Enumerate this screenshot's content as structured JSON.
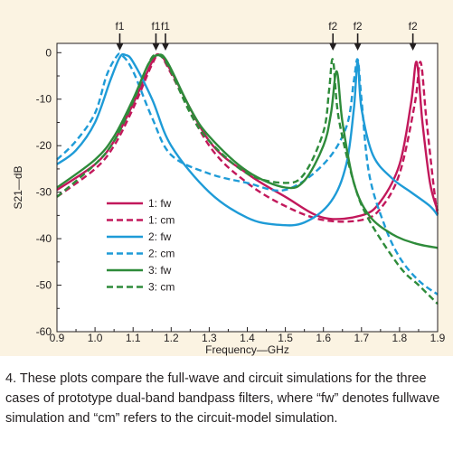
{
  "chart_data": {
    "type": "line",
    "xlabel": "Frequency—GHz",
    "ylabel": "S21—dB",
    "xlim": [
      0.9,
      1.9
    ],
    "ylim": [
      -60,
      2
    ],
    "xticks": [
      "0.9",
      "1.0",
      "1.1",
      "1.2",
      "1.3",
      "1.4",
      "1.5",
      "1.6",
      "1.7",
      "1.8",
      "1.9"
    ],
    "yticks": [
      "0",
      "-10",
      "-20",
      "-30",
      "-40",
      "-50",
      "-60"
    ],
    "grid": false,
    "legend_position": "lower-left",
    "colors": {
      "1": "#c2185b",
      "2": "#1e9bd7",
      "3": "#2e8b3a"
    },
    "series": [
      {
        "name": "1: fw",
        "color": "#c2185b",
        "dash": false,
        "x": [
          0.9,
          1.0,
          1.05,
          1.1,
          1.15,
          1.17,
          1.2,
          1.3,
          1.4,
          1.5,
          1.6,
          1.7,
          1.75,
          1.8,
          1.83,
          1.845,
          1.86,
          1.88,
          1.9
        ],
        "y": [
          -29.5,
          -24,
          -19,
          -11,
          -2,
          -0.5,
          -4,
          -19,
          -26,
          -31,
          -35.5,
          -35,
          -32,
          -24,
          -11,
          -2,
          -15,
          -28,
          -34
        ]
      },
      {
        "name": "1: cm",
        "color": "#c2185b",
        "dash": true,
        "x": [
          0.9,
          1.0,
          1.05,
          1.1,
          1.15,
          1.17,
          1.2,
          1.3,
          1.4,
          1.5,
          1.6,
          1.7,
          1.75,
          1.8,
          1.84,
          1.855,
          1.87,
          1.89,
          1.9
        ],
        "y": [
          -31,
          -25,
          -20,
          -12,
          -2.5,
          -0.5,
          -4.5,
          -20,
          -28,
          -33,
          -36,
          -36,
          -33.5,
          -26,
          -11,
          -2,
          -14,
          -29,
          -35
        ]
      },
      {
        "name": "2: fw",
        "color": "#1e9bd7",
        "dash": false,
        "x": [
          0.9,
          0.95,
          1.0,
          1.04,
          1.065,
          1.08,
          1.1,
          1.15,
          1.2,
          1.3,
          1.4,
          1.48,
          1.55,
          1.62,
          1.66,
          1.68,
          1.69,
          1.7,
          1.73,
          1.78,
          1.83,
          1.88,
          1.9
        ],
        "y": [
          -24,
          -21,
          -15,
          -6,
          -1,
          -0.5,
          -2,
          -10,
          -20,
          -30,
          -35.5,
          -37,
          -36.5,
          -32,
          -24,
          -12,
          -2,
          -12,
          -22,
          -27,
          -30,
          -33,
          -35
        ]
      },
      {
        "name": "2: cm",
        "color": "#1e9bd7",
        "dash": true,
        "x": [
          0.9,
          0.95,
          1.0,
          1.03,
          1.055,
          1.07,
          1.1,
          1.15,
          1.2,
          1.3,
          1.4,
          1.5,
          1.6,
          1.66,
          1.68,
          1.69,
          1.7,
          1.72,
          1.76,
          1.8,
          1.85,
          1.9
        ],
        "y": [
          -23,
          -19,
          -13,
          -5,
          -1,
          -0.5,
          -4,
          -14,
          -22,
          -26,
          -28,
          -29.5,
          -24,
          -16,
          -6,
          -1.5,
          -10,
          -26,
          -37,
          -44,
          -49,
          -52
        ]
      },
      {
        "name": "3: fw",
        "color": "#2e8b3a",
        "dash": false,
        "x": [
          0.9,
          1.0,
          1.05,
          1.1,
          1.14,
          1.165,
          1.19,
          1.25,
          1.3,
          1.4,
          1.5,
          1.55,
          1.6,
          1.62,
          1.635,
          1.65,
          1.68,
          1.72,
          1.78,
          1.84,
          1.9
        ],
        "y": [
          -29,
          -23,
          -18,
          -10,
          -2.5,
          -0.5,
          -2,
          -12,
          -18,
          -25.5,
          -29,
          -27.5,
          -20,
          -13,
          -4,
          -15,
          -28,
          -35,
          -39,
          -41,
          -42
        ]
      },
      {
        "name": "3: cm",
        "color": "#2e8b3a",
        "dash": true,
        "x": [
          0.9,
          1.0,
          1.05,
          1.1,
          1.14,
          1.16,
          1.19,
          1.25,
          1.3,
          1.4,
          1.5,
          1.55,
          1.6,
          1.615,
          1.625,
          1.64,
          1.68,
          1.72,
          1.8,
          1.85,
          1.9
        ],
        "y": [
          -31,
          -24,
          -19,
          -10.5,
          -2.5,
          -0.5,
          -2.5,
          -13,
          -19,
          -26,
          -28,
          -26,
          -17,
          -8,
          -1.5,
          -14,
          -28,
          -36,
          -46,
          -50,
          -54
        ]
      }
    ],
    "annotations": [
      {
        "label": "f1",
        "x": 1.065
      },
      {
        "label": "f1",
        "x": 1.16
      },
      {
        "label": "f1",
        "x": 1.185
      },
      {
        "label": "f2",
        "x": 1.625
      },
      {
        "label": "f2",
        "x": 1.69
      },
      {
        "label": "f2",
        "x": 1.835
      }
    ]
  },
  "caption": "4. These plots compare the full-wave and circuit simulations for the three cases of prototype dual-band bandpass filters, where “fw” denotes fullwave simulation and “cm” refers to the circuit-model simulation."
}
